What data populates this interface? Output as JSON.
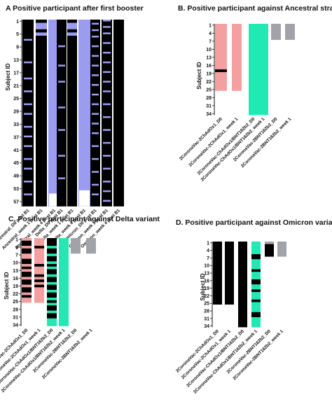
{
  "chart_data": [
    {
      "panel": "A",
      "title": "A Positive participant after first booster",
      "type": "heatmap",
      "ylabel": "Subject ID",
      "yticks": [
        "1",
        "5",
        "9",
        "13",
        "17",
        "21",
        "25",
        "29",
        "33",
        "37",
        "41",
        "45",
        "49",
        "53",
        "57"
      ],
      "n_rows": 58,
      "colors": {
        "positive": "#9b9bf0",
        "negative": "#000000",
        "none": "#ffffff"
      },
      "columns": [
        {
          "label": "Ancestral_D0 post B1",
          "pos": [],
          "none": []
        },
        {
          "label": "Ancestral_week 1 post B1",
          "pos": [
            [
              2,
              3
            ],
            [
              5,
              5
            ]
          ],
          "none": []
        },
        {
          "label": "Ancestral_week 4 post B1",
          "pos": [
            [
              1,
              58
            ]
          ],
          "none": [
            [
              55,
              58
            ]
          ]
        },
        {
          "label": "Delta_D0 post B1",
          "pos": [],
          "none": []
        },
        {
          "label": "Delta_week 1 post B1",
          "pos": [
            [
              2,
              3
            ],
            [
              5,
              5
            ]
          ],
          "none": []
        },
        {
          "label": "Delta_week 4 post B1",
          "pos": [
            [
              1,
              58
            ]
          ],
          "none": [
            [
              54,
              58
            ]
          ]
        },
        {
          "label": "Omicron_D0 post B1",
          "pos": [],
          "none": []
        },
        {
          "label": "Omicron_week 1 post B1",
          "pos": [],
          "none": []
        },
        {
          "label": "Omicron_week 4 post B1",
          "pos": [],
          "none": []
        }
      ]
    },
    {
      "panel": "B",
      "title": "B. Positive participant against Ancestral strain",
      "type": "heatmap",
      "ylabel": "Subject ID",
      "yticks": [
        "1",
        "4",
        "7",
        "10",
        "13",
        "16",
        "19",
        "22",
        "25",
        "28",
        "31",
        "34"
      ],
      "n_rows": 34,
      "colors": {
        "positive": "#f4a0a0",
        "negative": "#000000",
        "none": "#ffffff"
      },
      "columns": [
        {
          "label": "2CoronaVac-2ChAdOx1_D0",
          "color": "#f4a0a0",
          "pos": [
            [
              1,
              25
            ]
          ],
          "neg": [
            [
              18,
              18
            ]
          ]
        },
        {
          "label": "2CoronaVac-2ChAdOx1_week 1",
          "color": "#f4a0a0",
          "pos": [
            [
              1,
              25
            ]
          ],
          "neg": []
        },
        {
          "label": "2CoronaVac-ChAdOx1/BNT162b2_D0",
          "color": "#22e8b4",
          "pos": [
            [
              1,
              34
            ]
          ],
          "neg": []
        },
        {
          "label": "2CoronaVac-ChAdOx1/BNT162b2_week 1",
          "color": "#22e8b4",
          "pos": [
            [
              1,
              34
            ]
          ],
          "neg": []
        },
        {
          "label": "2CoronaVac-2BNT162b2_D0",
          "color": "#a2a2aa",
          "pos": [
            [
              1,
              6
            ]
          ],
          "neg": []
        },
        {
          "label": "2CoronaVac-2BNT162b2_week 1",
          "color": "#a2a2aa",
          "pos": [
            [
              1,
              6
            ]
          ],
          "neg": []
        }
      ]
    },
    {
      "panel": "C",
      "title": "C. Positive participant against Delta variant",
      "type": "heatmap",
      "ylabel": "Subject ID",
      "yticks": [
        "1",
        "4",
        "7",
        "10",
        "13",
        "16",
        "19",
        "22",
        "25",
        "28",
        "31",
        "34"
      ],
      "n_rows": 34,
      "colors": {
        "positive": "#f4a0a0",
        "negative": "#000000",
        "none": "#ffffff"
      },
      "columns": [
        {
          "label": "2CoronaVac-2ChAdOx1_D0",
          "color": "#f4a0a0",
          "pos": [
            [
              1,
              25
            ]
          ],
          "neg": [
            [
              2,
              3
            ],
            [
              5,
              6
            ],
            [
              9,
              10
            ],
            [
              12,
              12
            ],
            [
              14,
              15
            ],
            [
              17,
              18
            ],
            [
              20,
              21
            ],
            [
              23,
              23
            ]
          ]
        },
        {
          "label": "2CoronaVac-2ChAdOx1_week 1",
          "color": "#f4a0a0",
          "pos": [
            [
              1,
              25
            ]
          ],
          "neg": [
            [
              4,
              4
            ],
            [
              11,
              11
            ],
            [
              15,
              15
            ],
            [
              17,
              17
            ],
            [
              19,
              19
            ]
          ]
        },
        {
          "label": "2CoronaVac-ChAdOx1/BNT162b2_D0",
          "color": "#22e8b4",
          "pos": [
            [
              1,
              34
            ]
          ],
          "neg": [
            [
              1,
              3
            ],
            [
              5,
              6
            ],
            [
              8,
              9
            ],
            [
              11,
              11
            ],
            [
              13,
              14
            ],
            [
              16,
              17
            ],
            [
              19,
              20
            ],
            [
              22,
              23
            ],
            [
              25,
              25
            ],
            [
              27,
              28
            ],
            [
              30,
              31
            ]
          ]
        },
        {
          "label": "2CoronaVac-ChAdOx1/BNT162b2_week 1",
          "color": "#22e8b4",
          "pos": [
            [
              1,
              34
            ]
          ],
          "neg": []
        },
        {
          "label": "2CoronaVac-2BNT162b2_D0",
          "color": "#a2a2aa",
          "pos": [
            [
              1,
              6
            ]
          ],
          "neg": []
        },
        {
          "label": "2CoronaVac-2BNT162b2_week 1",
          "color": "#a2a2aa",
          "pos": [
            [
              1,
              6
            ]
          ],
          "neg": []
        }
      ]
    },
    {
      "panel": "D",
      "title": "D. Positive participant against Omicron variant",
      "type": "heatmap",
      "ylabel": "Subject ID",
      "yticks": [
        "1",
        "4",
        "7",
        "10",
        "13",
        "16",
        "19",
        "22",
        "25",
        "28",
        "31",
        "34"
      ],
      "n_rows": 34,
      "colors": {
        "positive": "#f4a0a0",
        "negative": "#000000",
        "none": "#ffffff"
      },
      "columns": [
        {
          "label": "2CoronaVac-2ChAdOx1_D0",
          "color": "#f4a0a0",
          "pos": [
            [
              9,
              9
            ]
          ],
          "neg": [
            [
              1,
              25
            ]
          ]
        },
        {
          "label": "2CoronaVac-2ChAdOx1_week 1",
          "color": "#f4a0a0",
          "pos": [
            [
              5,
              5
            ],
            [
              9,
              9
            ],
            [
              22,
              22
            ]
          ],
          "neg": [
            [
              1,
              25
            ]
          ]
        },
        {
          "label": "2CoronaVac-ChAdOx1/BNT162b2_D0",
          "color": "#22e8b4",
          "pos": [
            [
              4,
              4
            ],
            [
              17,
              17
            ]
          ],
          "neg": [
            [
              1,
              34
            ]
          ]
        },
        {
          "label": "2CoronaVac-ChAdOx1/BNT162b2_week 1",
          "color": "#22e8b4",
          "pos": [
            [
              1,
              34
            ]
          ],
          "neg": [
            [
              6,
              7
            ],
            [
              12,
              12
            ],
            [
              16,
              17
            ],
            [
              20,
              20
            ],
            [
              24,
              24
            ],
            [
              29,
              30
            ]
          ]
        },
        {
          "label": "2CoronaVac-2BNT162b2_D0",
          "color": "#a2a2aa",
          "pos": [
            [
              1,
              1
            ]
          ],
          "neg": [
            [
              2,
              6
            ]
          ]
        },
        {
          "label": "2CoronaVac-2BNT162b2_week 1",
          "color": "#a2a2aa",
          "pos": [
            [
              1,
              6
            ]
          ],
          "neg": []
        }
      ]
    }
  ]
}
